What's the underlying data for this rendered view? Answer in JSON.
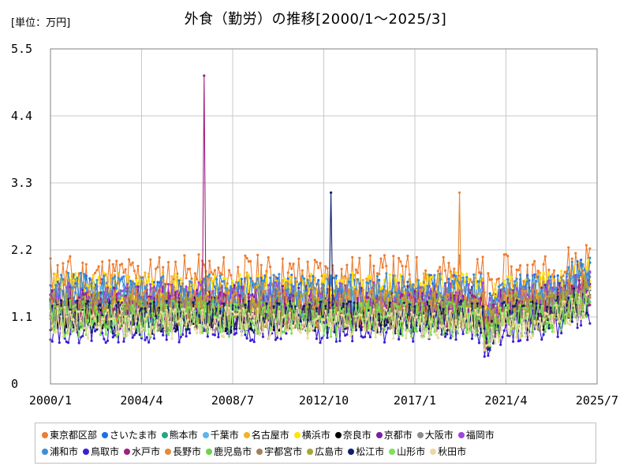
{
  "chart_data": {
    "type": "line",
    "title": "外食（勤労）の推移[2000/1〜2025/3]",
    "unit_label": "[単位：万円]",
    "xlabel": "",
    "ylabel": "",
    "x_range": [
      "2000/1",
      "2025/7"
    ],
    "x_ticks": [
      "2000/1",
      "2004/4",
      "2008/7",
      "2012/10",
      "2017/1",
      "2021/4",
      "2025/7"
    ],
    "ylim": [
      0,
      5.5
    ],
    "y_ticks": [
      "0",
      "1.1",
      "2.2",
      "3.3",
      "4.4",
      "5.5"
    ],
    "grid": "both",
    "legend_position": "bottom",
    "series": [
      {
        "name": "東京都区部",
        "color": "#ed7d31",
        "base": 1.75,
        "spread": 0.38,
        "seed": 11
      },
      {
        "name": "さいたま市",
        "color": "#1f6fe5",
        "base": 1.45,
        "spread": 0.35,
        "seed": 12
      },
      {
        "name": "熊本市",
        "color": "#22a884",
        "base": 1.25,
        "spread": 0.3,
        "seed": 13
      },
      {
        "name": "千葉市",
        "color": "#5ab4f0",
        "base": 1.3,
        "spread": 0.3,
        "seed": 14
      },
      {
        "name": "名古屋市",
        "color": "#f0b323",
        "base": 1.5,
        "spread": 0.33,
        "seed": 15
      },
      {
        "name": "横浜市",
        "color": "#ffe400",
        "base": 1.5,
        "spread": 0.33,
        "seed": 16
      },
      {
        "name": "奈良市",
        "color": "#000000",
        "base": 1.15,
        "spread": 0.28,
        "seed": 17
      },
      {
        "name": "京都市",
        "color": "#7b1fa2",
        "base": 1.3,
        "spread": 0.32,
        "seed": 18
      },
      {
        "name": "大阪市",
        "color": "#8c8c8c",
        "base": 1.35,
        "spread": 0.3,
        "seed": 19
      },
      {
        "name": "福岡市",
        "color": "#a044e0",
        "base": 1.35,
        "spread": 0.32,
        "seed": 20
      },
      {
        "name": "浦和市",
        "color": "#3d8fd6",
        "base": 1.5,
        "spread": 0.32,
        "seed": 21
      },
      {
        "name": "鳥取市",
        "color": "#3b1fd1",
        "base": 0.95,
        "spread": 0.28,
        "seed": 22
      },
      {
        "name": "水戸市",
        "color": "#a0207f",
        "base": 1.2,
        "spread": 0.3,
        "seed": 23
      },
      {
        "name": "長野市",
        "color": "#e58a3a",
        "base": 1.25,
        "spread": 0.3,
        "seed": 24
      },
      {
        "name": "鹿児島市",
        "color": "#6ad44a",
        "base": 1.1,
        "spread": 0.28,
        "seed": 25
      },
      {
        "name": "宇都宮市",
        "color": "#a08060",
        "base": 1.15,
        "spread": 0.28,
        "seed": 26
      },
      {
        "name": "広島市",
        "color": "#a8a832",
        "base": 1.2,
        "spread": 0.3,
        "seed": 27
      },
      {
        "name": "松江市",
        "color": "#10206a",
        "base": 1.1,
        "spread": 0.28,
        "seed": 28
      },
      {
        "name": "山形市",
        "color": "#7fe05a",
        "base": 1.05,
        "spread": 0.28,
        "seed": 29
      },
      {
        "name": "秋田市",
        "color": "#eed9a0",
        "base": 1.0,
        "spread": 0.26,
        "seed": 30
      }
    ],
    "annotations": [
      {
        "series": "水戸市",
        "x": "2007/3",
        "y": 5.06
      },
      {
        "series": "松江市",
        "x": "2013/2",
        "y": 3.14
      },
      {
        "series": "長野市",
        "x": "2019/2",
        "y": 3.14
      }
    ]
  }
}
